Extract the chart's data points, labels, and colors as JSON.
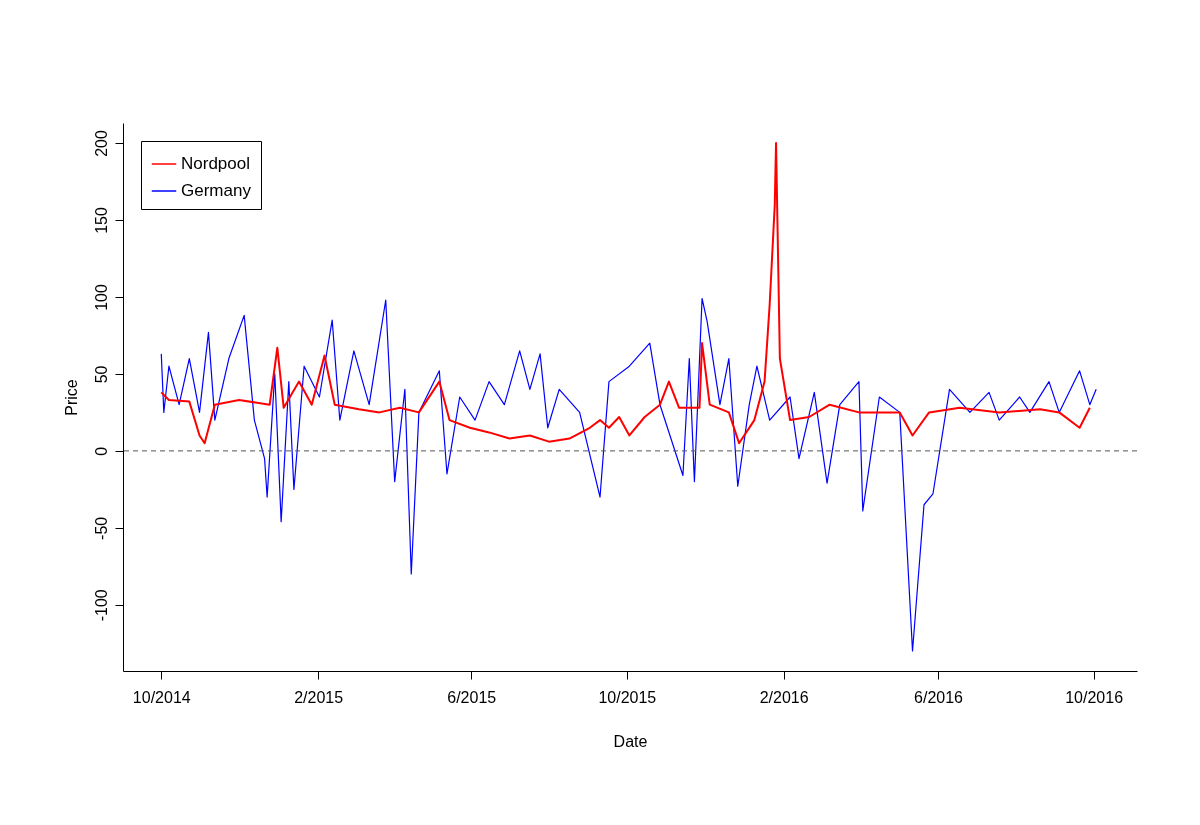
{
  "chart_data": {
    "type": "line",
    "xlabel": "Date",
    "ylabel": "Price",
    "legend": "top left",
    "grid": false,
    "xlim": [
      "2014-09-01",
      "2016-11-04"
    ],
    "ylim": [
      -143,
      213
    ],
    "xticks": [
      {
        "value": "2014-10-01",
        "label": "10/2014"
      },
      {
        "value": "2015-02-01",
        "label": "2/2015"
      },
      {
        "value": "2015-06-01",
        "label": "6/2015"
      },
      {
        "value": "2015-10-01",
        "label": "10/2015"
      },
      {
        "value": "2016-02-01",
        "label": "2/2016"
      },
      {
        "value": "2016-06-01",
        "label": "6/2016"
      },
      {
        "value": "2016-10-01",
        "label": "10/2016"
      }
    ],
    "yticks": [
      -100,
      -50,
      0,
      50,
      100,
      150,
      200
    ],
    "ref_lines": [
      {
        "axis": "y",
        "value": 0,
        "color": "#555555",
        "line_style": "dashed"
      }
    ],
    "series": [
      {
        "name": "Nordpool",
        "color": "#ff0000",
        "x": [
          "2014-10-01",
          "2014-10-07",
          "2014-10-23",
          "2014-10-31",
          "2014-11-04",
          "2014-11-12",
          "2014-12-01",
          "2014-12-25",
          "2014-12-31",
          "2015-01-05",
          "2015-01-17",
          "2015-01-27",
          "2015-02-06",
          "2015-02-14",
          "2015-03-05",
          "2015-03-21",
          "2015-04-06",
          "2015-04-21",
          "2015-05-07",
          "2015-05-15",
          "2015-05-31",
          "2015-06-15",
          "2015-07-01",
          "2015-07-17",
          "2015-08-01",
          "2015-08-17",
          "2015-09-02",
          "2015-09-10",
          "2015-09-17",
          "2015-09-25",
          "2015-10-03",
          "2015-10-15",
          "2015-10-27",
          "2015-11-03",
          "2015-11-11",
          "2015-11-27",
          "2015-11-29",
          "2015-12-05",
          "2015-12-20",
          "2015-12-28",
          "2016-01-09",
          "2016-01-17",
          "2016-01-21",
          "2016-01-25",
          "2016-01-26",
          "2016-01-29",
          "2016-02-06",
          "2016-02-21",
          "2016-03-08",
          "2016-03-31",
          "2016-05-02",
          "2016-05-12",
          "2016-05-25",
          "2016-06-18",
          "2016-07-19",
          "2016-08-20",
          "2016-09-04",
          "2016-09-20",
          "2016-09-28"
        ],
        "values": [
          38,
          33,
          32,
          10,
          5,
          30,
          33,
          30,
          67,
          28,
          45,
          30,
          62,
          30,
          27,
          25,
          28,
          25,
          45,
          20,
          15,
          12,
          8,
          10,
          6,
          8,
          15,
          20,
          15,
          22,
          10,
          22,
          30,
          45,
          28,
          28,
          70,
          30,
          25,
          5,
          20,
          45,
          95,
          160,
          200,
          60,
          20,
          22,
          30,
          25,
          25,
          10,
          25,
          28,
          25,
          27,
          25,
          15,
          28
        ]
      },
      {
        "name": "Germany",
        "color": "#0000ff",
        "x": [
          "2014-10-01",
          "2014-10-03",
          "2014-10-07",
          "2014-10-15",
          "2014-10-23",
          "2014-10-31",
          "2014-11-07",
          "2014-11-12",
          "2014-11-23",
          "2014-12-05",
          "2014-12-13",
          "2014-12-21",
          "2014-12-23",
          "2014-12-29",
          "2015-01-03",
          "2015-01-09",
          "2015-01-13",
          "2015-01-21",
          "2015-02-02",
          "2015-02-12",
          "2015-02-18",
          "2015-03-01",
          "2015-03-13",
          "2015-03-26",
          "2015-04-02",
          "2015-04-10",
          "2015-04-15",
          "2015-04-21",
          "2015-05-07",
          "2015-05-13",
          "2015-05-23",
          "2015-06-04",
          "2015-06-15",
          "2015-06-27",
          "2015-07-09",
          "2015-07-17",
          "2015-07-25",
          "2015-07-31",
          "2015-08-09",
          "2015-08-25",
          "2015-09-10",
          "2015-09-17",
          "2015-10-03",
          "2015-10-19",
          "2015-10-27",
          "2015-11-14",
          "2015-11-19",
          "2015-11-23",
          "2015-11-29",
          "2015-12-03",
          "2015-12-13",
          "2015-12-20",
          "2015-12-27",
          "2016-01-05",
          "2016-01-11",
          "2016-01-21",
          "2016-02-06",
          "2016-02-13",
          "2016-02-25",
          "2016-03-06",
          "2016-03-16",
          "2016-03-31",
          "2016-04-03",
          "2016-04-16",
          "2016-05-02",
          "2016-05-12",
          "2016-05-21",
          "2016-05-28",
          "2016-06-10",
          "2016-06-26",
          "2016-07-11",
          "2016-07-19",
          "2016-08-04",
          "2016-08-12",
          "2016-08-27",
          "2016-09-04",
          "2016-09-20",
          "2016-09-28",
          "2016-10-03"
        ],
        "values": [
          63,
          25,
          55,
          30,
          60,
          25,
          77,
          20,
          60,
          88,
          20,
          -5,
          -30,
          50,
          -46,
          45,
          -25,
          55,
          35,
          85,
          20,
          65,
          30,
          98,
          -20,
          40,
          -80,
          25,
          52,
          -15,
          35,
          20,
          45,
          30,
          65,
          40,
          63,
          15,
          40,
          25,
          -30,
          45,
          55,
          70,
          30,
          -16,
          60,
          -20,
          99,
          84,
          30,
          60,
          -23,
          30,
          55,
          20,
          35,
          -5,
          38,
          -21,
          30,
          45,
          -39,
          35,
          25,
          -130,
          -35,
          -28,
          40,
          25,
          38,
          20,
          35,
          25,
          45,
          25,
          52,
          30,
          40
        ]
      }
    ]
  }
}
